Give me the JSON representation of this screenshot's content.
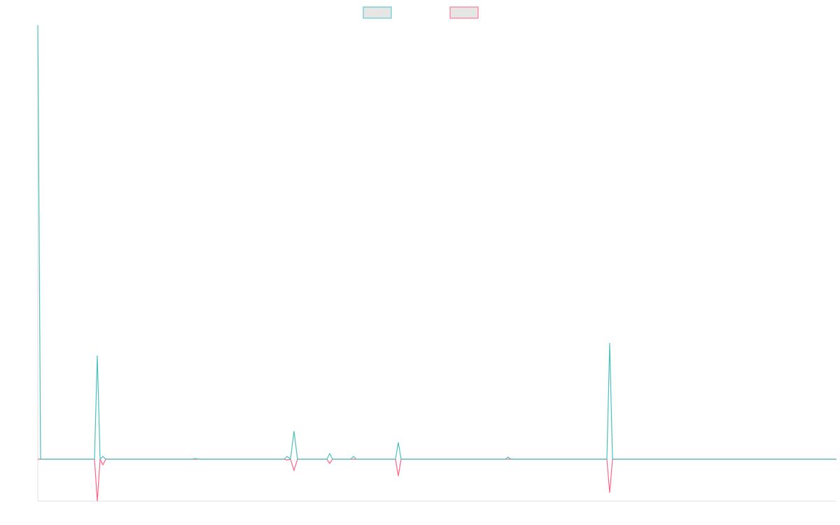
{
  "chart_data": {
    "type": "line",
    "x": [
      0,
      4,
      81,
      85,
      89,
      93,
      97,
      221,
      225,
      229,
      352,
      356,
      361,
      366,
      371,
      413,
      417,
      421,
      447,
      451,
      455,
      511,
      515,
      519,
      668,
      672,
      676,
      813,
      817,
      821,
      1141
    ],
    "series": [
      {
        "color": "#4bc0c0",
        "values": [
          620,
          0,
          0,
          148,
          0,
          4,
          0,
          0,
          1,
          0,
          0,
          4,
          0,
          40,
          0,
          0,
          8,
          0,
          0,
          4,
          0,
          0,
          24,
          0,
          0,
          3,
          0,
          0,
          166,
          0,
          0
        ]
      },
      {
        "color": "#ff6384",
        "values": [
          0,
          0,
          0,
          -60,
          0,
          -8,
          0,
          0,
          0,
          0,
          0,
          -1,
          0,
          -16,
          0,
          0,
          -6,
          0,
          0,
          0,
          0,
          0,
          -24,
          0,
          0,
          0,
          0,
          0,
          -48,
          0,
          0
        ]
      }
    ],
    "xlim": [
      0,
      1141
    ],
    "ylim": [
      -60,
      620
    ],
    "legend": "top"
  }
}
